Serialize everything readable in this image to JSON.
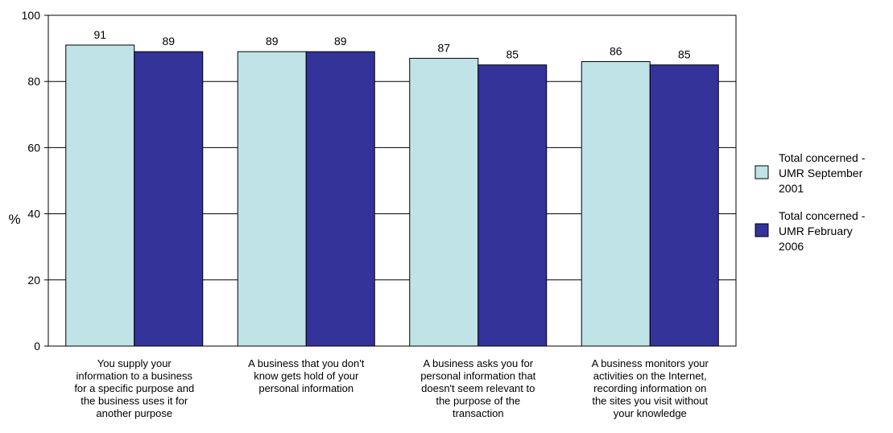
{
  "chart_data": {
    "type": "bar",
    "ylabel": "%",
    "ylim": [
      0,
      100
    ],
    "yticks": [
      0,
      20,
      40,
      60,
      80,
      100
    ],
    "grid": true,
    "legend_position": "right",
    "categories": [
      [
        "You supply your",
        "information to a business",
        "for a specific purpose and",
        "the business uses it for",
        "another purpose"
      ],
      [
        "A business that you don't",
        "know gets hold of your",
        "personal information"
      ],
      [
        "A business asks you for",
        "personal information that",
        "doesn't seem relevant to",
        "the purpose of the",
        "transaction"
      ],
      [
        "A business monitors your",
        "activities on the Internet,",
        "recording information on",
        "the sites you visit without",
        "your knowledge"
      ]
    ],
    "series": [
      {
        "name": [
          "Total concerned -",
          "UMR September",
          "2001"
        ],
        "color": "#bfe3e6",
        "values": [
          91,
          89,
          87,
          86
        ]
      },
      {
        "name": [
          "Total concerned -",
          "UMR February",
          "2006"
        ],
        "color": "#333399",
        "values": [
          89,
          89,
          85,
          85
        ]
      }
    ]
  }
}
